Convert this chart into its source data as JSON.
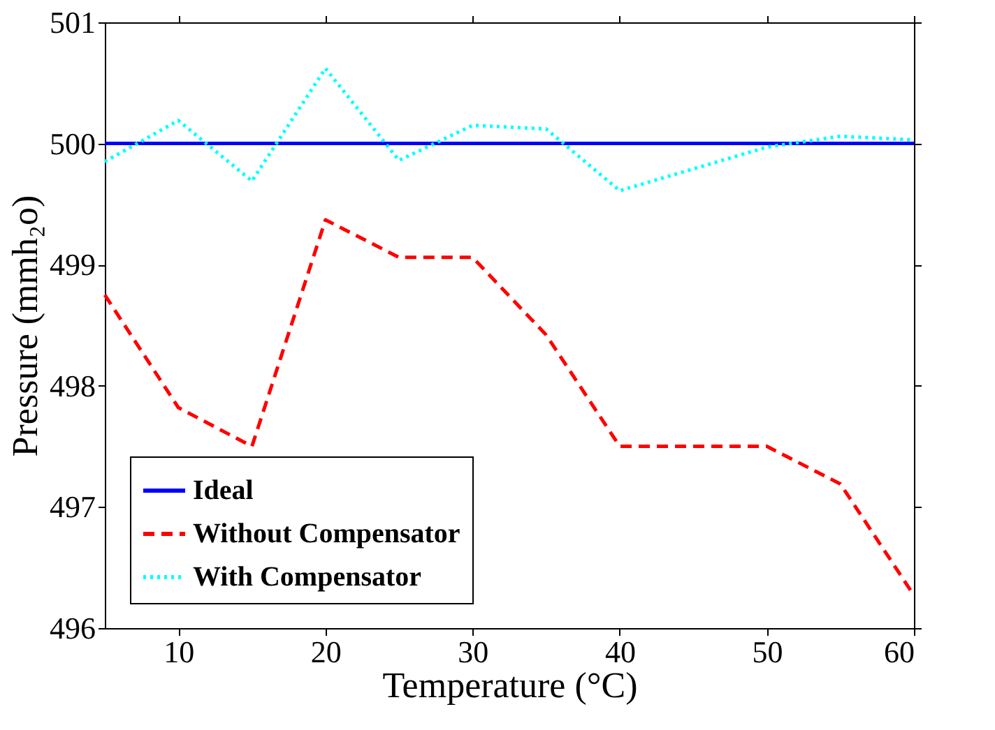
{
  "chart_data": {
    "type": "line",
    "xlabel": "Temperature (°C)",
    "ylabel": "Pressure (mmh₂o)",
    "x": [
      5,
      10,
      15,
      20,
      25,
      30,
      35,
      40,
      50,
      55,
      60
    ],
    "xlim": [
      5,
      60
    ],
    "xticks": [
      10,
      20,
      30,
      40,
      50,
      60
    ],
    "ylim": [
      496,
      501
    ],
    "yticks": [
      496,
      497,
      498,
      499,
      500,
      501
    ],
    "grid": false,
    "legend": "bottom left",
    "series": [
      {
        "name": "Ideal",
        "color": "#0000ff",
        "line_style": "solid",
        "values": [
          500,
          500,
          500,
          500,
          500,
          500,
          500,
          500,
          500,
          500,
          500
        ]
      },
      {
        "name": "Without Compensator",
        "color": "#ff0000",
        "line_style": "dashed",
        "values": [
          498.75,
          497.82,
          497.5,
          499.37,
          499.06,
          499.06,
          498.42,
          497.5,
          497.5,
          497.19,
          496.27
        ]
      },
      {
        "name": "With Compensator",
        "color": "#00ffff",
        "line_style": "dotted",
        "values": [
          499.85,
          500.19,
          499.69,
          500.62,
          499.86,
          500.15,
          500.12,
          499.61,
          499.97,
          500.06,
          500.03
        ]
      }
    ]
  }
}
